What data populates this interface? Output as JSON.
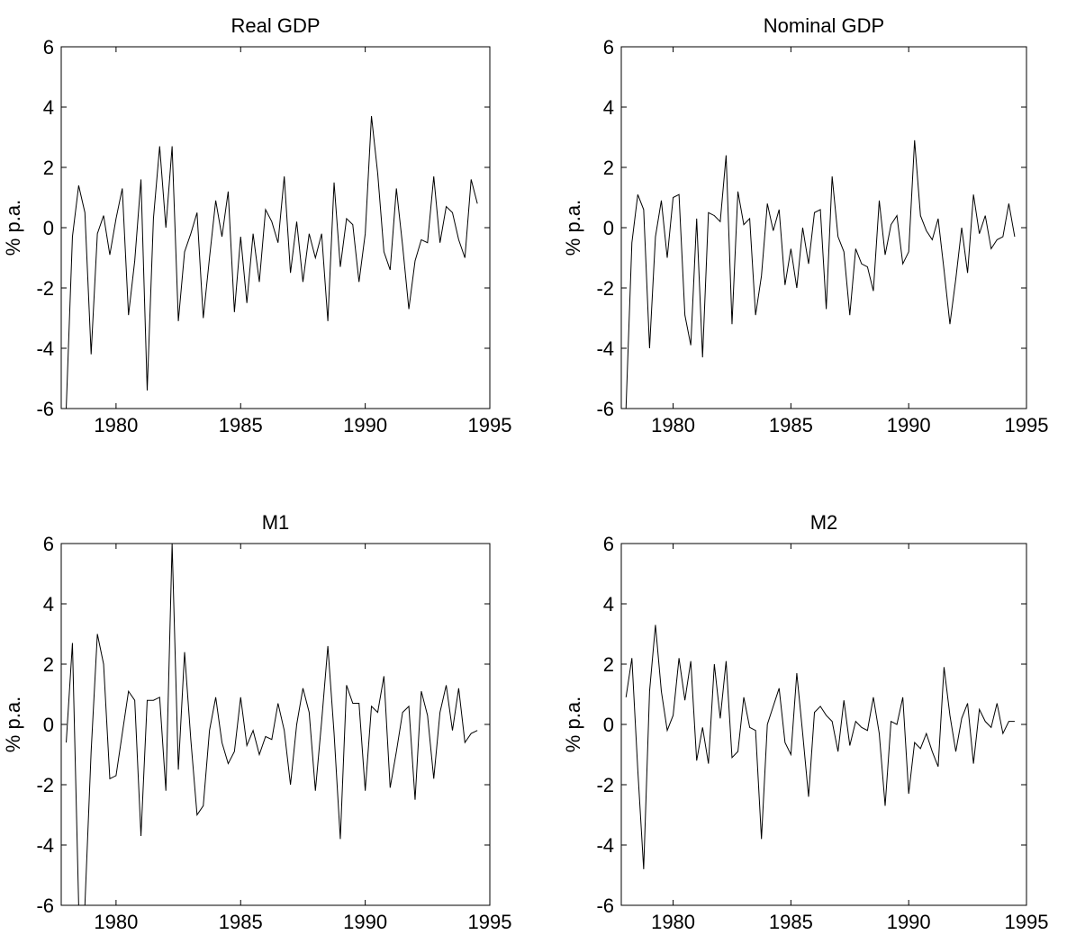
{
  "chart_data": [
    {
      "type": "line",
      "title": "Real GDP",
      "ylabel": "% p.a.",
      "xlim": [
        1977.8,
        1995
      ],
      "ylim": [
        -6,
        6
      ],
      "xticks": [
        1980,
        1985,
        1990,
        1995
      ],
      "yticks": [
        -6,
        -4,
        -2,
        0,
        2,
        4,
        6
      ],
      "grid": false,
      "series": [
        {
          "color": "#000000",
          "x0": 1978.0,
          "step": 0.25,
          "values": [
            -6.0,
            -0.3,
            1.4,
            0.5,
            -4.2,
            -0.2,
            0.4,
            -0.9,
            0.3,
            1.3,
            -2.9,
            -1.1,
            1.6,
            -5.4,
            0.3,
            2.7,
            0.0,
            2.7,
            -3.1,
            -0.8,
            -0.2,
            0.5,
            -3.0,
            -1.0,
            0.9,
            -0.3,
            1.2,
            -2.8,
            -0.3,
            -2.5,
            -0.2,
            -1.8,
            0.6,
            0.2,
            -0.5,
            1.7,
            -1.5,
            0.2,
            -1.8,
            -0.2,
            -1.0,
            -0.2,
            -3.1,
            1.5,
            -1.3,
            0.3,
            0.1,
            -1.8,
            -0.2,
            3.7,
            1.8,
            -0.8,
            -1.4,
            1.3,
            -0.6,
            -2.7,
            -1.1,
            -0.4,
            -0.5,
            1.7,
            -0.5,
            0.7,
            0.5,
            -0.4,
            -1.0,
            1.6,
            0.8
          ]
        }
      ]
    },
    {
      "type": "line",
      "title": "Nominal GDP",
      "ylabel": "% p.a.",
      "xlim": [
        1977.8,
        1995
      ],
      "ylim": [
        -6,
        6
      ],
      "xticks": [
        1980,
        1985,
        1990,
        1995
      ],
      "yticks": [
        -6,
        -4,
        -2,
        0,
        2,
        4,
        6
      ],
      "grid": false,
      "series": [
        {
          "color": "#000000",
          "x0": 1978.0,
          "step": 0.25,
          "values": [
            -6.0,
            -0.5,
            1.1,
            0.6,
            -4.0,
            -0.3,
            0.9,
            -1.0,
            1.0,
            1.1,
            -2.9,
            -3.9,
            0.3,
            -4.3,
            0.5,
            0.4,
            0.2,
            2.4,
            -3.2,
            1.2,
            0.1,
            0.3,
            -2.9,
            -1.6,
            0.8,
            -0.1,
            0.6,
            -1.9,
            -0.7,
            -2.0,
            0.0,
            -1.2,
            0.5,
            0.6,
            -2.7,
            1.7,
            -0.3,
            -0.8,
            -2.9,
            -0.7,
            -1.2,
            -1.3,
            -2.1,
            0.9,
            -0.9,
            0.1,
            0.4,
            -1.2,
            -0.8,
            2.9,
            0.4,
            -0.1,
            -0.4,
            0.3,
            -1.4,
            -3.2,
            -1.7,
            0.0,
            -1.5,
            1.1,
            -0.2,
            0.4,
            -0.7,
            -0.4,
            -0.3,
            0.8,
            -0.3
          ]
        }
      ]
    },
    {
      "type": "line",
      "title": "M1",
      "ylabel": "% p.a.",
      "xlim": [
        1977.8,
        1995
      ],
      "ylim": [
        -6,
        6
      ],
      "xticks": [
        1980,
        1985,
        1990,
        1995
      ],
      "yticks": [
        -6,
        -4,
        -2,
        0,
        2,
        4,
        6
      ],
      "grid": false,
      "series": [
        {
          "color": "#000000",
          "x0": 1978.0,
          "step": 0.25,
          "values": [
            -0.6,
            2.7,
            -6.0,
            -6.0,
            -0.9,
            3.0,
            2.0,
            -1.8,
            -1.7,
            -0.3,
            1.1,
            0.8,
            -3.7,
            0.8,
            0.8,
            0.9,
            -2.2,
            6.0,
            -1.5,
            2.4,
            -0.5,
            -3.0,
            -2.7,
            -0.2,
            0.9,
            -0.6,
            -1.3,
            -0.9,
            0.9,
            -0.7,
            -0.2,
            -1.0,
            -0.4,
            -0.5,
            0.7,
            -0.2,
            -2.0,
            0.0,
            1.2,
            0.4,
            -2.2,
            0.1,
            2.6,
            -0.3,
            -3.8,
            1.3,
            0.7,
            0.7,
            -2.2,
            0.6,
            0.4,
            1.6,
            -2.1,
            -0.9,
            0.4,
            0.6,
            -2.5,
            1.1,
            0.3,
            -1.8,
            0.4,
            1.3,
            -0.2,
            1.2,
            -0.6,
            -0.3,
            -0.2
          ]
        }
      ]
    },
    {
      "type": "line",
      "title": "M2",
      "ylabel": "% p.a.",
      "xlim": [
        1977.8,
        1995
      ],
      "ylim": [
        -6,
        6
      ],
      "xticks": [
        1980,
        1985,
        1990,
        1995
      ],
      "yticks": [
        -6,
        -4,
        -2,
        0,
        2,
        4,
        6
      ],
      "grid": false,
      "series": [
        {
          "color": "#000000",
          "x0": 1978.0,
          "step": 0.25,
          "values": [
            0.9,
            2.2,
            -1.5,
            -4.8,
            1.1,
            3.3,
            1.1,
            -0.2,
            0.3,
            2.2,
            0.8,
            2.1,
            -1.2,
            -0.1,
            -1.3,
            2.0,
            0.2,
            2.1,
            -1.1,
            -0.9,
            0.9,
            -0.1,
            -0.2,
            -3.8,
            0.0,
            0.6,
            1.2,
            -0.6,
            -1.0,
            1.7,
            -0.3,
            -2.4,
            0.4,
            0.6,
            0.3,
            0.1,
            -0.9,
            0.8,
            -0.7,
            0.1,
            -0.1,
            -0.2,
            0.9,
            -0.3,
            -2.7,
            0.1,
            0.0,
            0.9,
            -2.3,
            -0.6,
            -0.8,
            -0.3,
            -0.9,
            -1.4,
            1.9,
            0.3,
            -0.9,
            0.2,
            0.7,
            -1.3,
            0.5,
            0.1,
            -0.1,
            0.7,
            -0.3,
            0.1,
            0.1
          ]
        }
      ]
    }
  ]
}
